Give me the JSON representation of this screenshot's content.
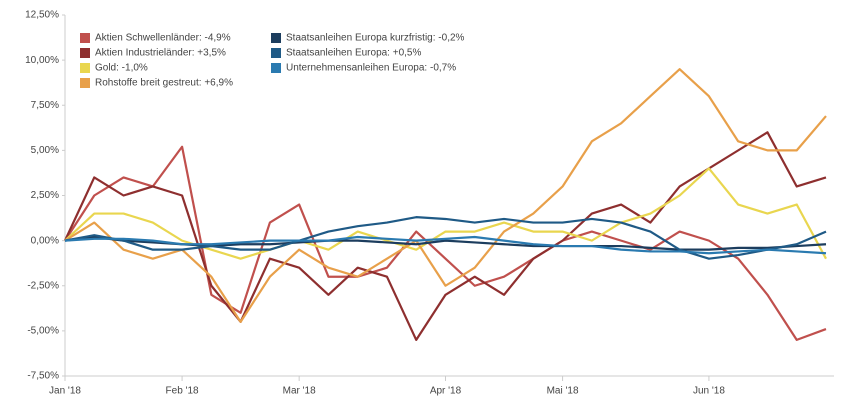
{
  "chart_data": {
    "type": "line",
    "categories": [
      "Jan '18",
      null,
      null,
      null,
      "Feb '18",
      null,
      null,
      null,
      "Mar '18",
      null,
      null,
      null,
      null,
      "Apr '18",
      null,
      null,
      null,
      "Mai '18",
      null,
      null,
      null,
      null,
      "Jun '18",
      null,
      null,
      null,
      null
    ],
    "series": [
      {
        "name": "Aktien Schwellenländer: -4,9%",
        "color": "#c0504d",
        "values": [
          0,
          2.5,
          3.5,
          3,
          5.2,
          -3,
          -4,
          1,
          2,
          -2,
          -2,
          -1.5,
          0.5,
          -1,
          -2.5,
          -2,
          -1,
          0,
          0.5,
          0,
          -0.5,
          0.5,
          0,
          -1,
          -3,
          -5.5,
          -4.9
        ]
      },
      {
        "name": "Aktien Industrieländer: +3,5%",
        "color": "#8e2f2f",
        "values": [
          0,
          3.5,
          2.5,
          3,
          2.5,
          -2.5,
          -4.5,
          -1,
          -1.5,
          -3,
          -1.5,
          -2,
          -5.5,
          -3,
          -2,
          -3,
          -1,
          0,
          1.5,
          2,
          1,
          3,
          4,
          5,
          6,
          3,
          3.5
        ]
      },
      {
        "name": "Gold: -1,0%",
        "color": "#e9d64f",
        "values": [
          0,
          1.5,
          1.5,
          1,
          0,
          -0.5,
          -1,
          -0.5,
          0,
          -0.5,
          0.5,
          0,
          -0.5,
          0.5,
          0.5,
          1,
          0.5,
          0.5,
          0,
          1,
          1.5,
          2.5,
          4,
          2,
          1.5,
          2,
          -1
        ]
      },
      {
        "name": "Rohstoffe breit gestreut: +6,9%",
        "color": "#e8a04a",
        "values": [
          0,
          1,
          -0.5,
          -1,
          -0.5,
          -2,
          -4.5,
          -2,
          -0.5,
          -1.5,
          -2,
          -1,
          0,
          -2.5,
          -1.5,
          0.5,
          1.5,
          3,
          5.5,
          6.5,
          8,
          9.5,
          8,
          5.5,
          5,
          5,
          6.9
        ]
      },
      {
        "name": "Staatsanleihen Europa kurzfristig: -0,2%",
        "color": "#1c3d5e",
        "values": [
          0,
          0.2,
          0,
          -0.1,
          -0.2,
          -0.3,
          -0.2,
          -0.2,
          -0.1,
          0,
          0,
          -0.1,
          -0.2,
          0,
          -0.1,
          -0.2,
          -0.3,
          -0.3,
          -0.3,
          -0.3,
          -0.4,
          -0.5,
          -0.5,
          -0.4,
          -0.4,
          -0.3,
          -0.2
        ]
      },
      {
        "name": "Staatsanleihen Europa: +0,5%",
        "color": "#1f5a86",
        "values": [
          0,
          0.3,
          0,
          -0.5,
          -0.5,
          -0.3,
          -0.5,
          -0.5,
          0,
          0.5,
          0.8,
          1,
          1.3,
          1.2,
          1,
          1.2,
          1,
          1,
          1.2,
          1,
          0.5,
          -0.5,
          -1,
          -0.8,
          -0.5,
          -0.2,
          0.5
        ]
      },
      {
        "name": "Unternehmensanleihen Europa: -0,7%",
        "color": "#2a7ab0",
        "values": [
          0,
          0.1,
          0.1,
          0,
          -0.2,
          -0.2,
          -0.1,
          0,
          0,
          0,
          0.2,
          0.1,
          0,
          0.1,
          0.2,
          0,
          -0.2,
          -0.3,
          -0.3,
          -0.5,
          -0.6,
          -0.6,
          -0.7,
          -0.6,
          -0.5,
          -0.6,
          -0.7
        ]
      }
    ],
    "ylim": [
      -7.5,
      12.5
    ],
    "yticks": [
      {
        "value": -7.5,
        "label": "-7,50%"
      },
      {
        "value": -5,
        "label": "-5,00%"
      },
      {
        "value": -2.5,
        "label": "-2,50%"
      },
      {
        "value": 0,
        "label": "0,00%"
      },
      {
        "value": 2.5,
        "label": "2,50%"
      },
      {
        "value": 5,
        "label": "5,00%"
      },
      {
        "value": 7.5,
        "label": "7,50%"
      },
      {
        "value": 10,
        "label": "10,00%"
      },
      {
        "value": 12.5,
        "label": "12,50%"
      }
    ],
    "grid": false
  }
}
